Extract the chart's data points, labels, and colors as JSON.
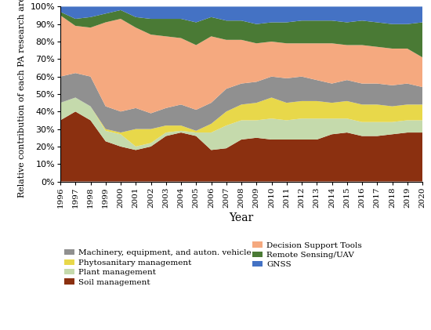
{
  "years": [
    1996,
    1997,
    1998,
    1999,
    2000,
    2001,
    2002,
    2003,
    2004,
    2005,
    2006,
    2007,
    2008,
    2009,
    2010,
    2011,
    2012,
    2013,
    2014,
    2015,
    2016,
    2017,
    2018,
    2019,
    2020
  ],
  "series": {
    "Soil management": [
      35,
      40,
      35,
      23,
      20,
      18,
      20,
      26,
      28,
      26,
      18,
      19,
      24,
      25,
      24,
      24,
      24,
      24,
      27,
      28,
      26,
      26,
      27,
      28,
      28
    ],
    "Plant management": [
      10,
      8,
      8,
      6,
      7,
      2,
      2,
      2,
      1,
      2,
      10,
      13,
      11,
      10,
      12,
      11,
      12,
      12,
      9,
      8,
      8,
      8,
      7,
      7,
      7
    ],
    "Phytosanitary management": [
      0,
      0,
      0,
      1,
      1,
      10,
      8,
      4,
      3,
      1,
      5,
      8,
      9,
      10,
      12,
      10,
      10,
      10,
      9,
      10,
      10,
      10,
      9,
      9,
      9
    ],
    "Machinery, equipment, and auton. vehicle": [
      15,
      14,
      17,
      13,
      12,
      12,
      9,
      10,
      12,
      12,
      12,
      13,
      12,
      12,
      12,
      14,
      14,
      12,
      11,
      12,
      12,
      12,
      12,
      12,
      10
    ],
    "Decision Support Tools": [
      35,
      27,
      28,
      48,
      53,
      46,
      45,
      41,
      38,
      37,
      38,
      28,
      25,
      22,
      20,
      20,
      19,
      21,
      23,
      20,
      22,
      21,
      21,
      20,
      17
    ],
    "Remote Sensing/UAV": [
      2,
      4,
      6,
      5,
      5,
      6,
      9,
      10,
      11,
      13,
      11,
      11,
      11,
      11,
      11,
      12,
      13,
      13,
      13,
      13,
      14,
      14,
      14,
      14,
      20
    ],
    "GNSS": [
      3,
      7,
      6,
      4,
      2,
      6,
      7,
      7,
      7,
      9,
      6,
      8,
      8,
      10,
      9,
      9,
      8,
      8,
      8,
      9,
      8,
      9,
      10,
      10,
      9
    ]
  },
  "colors": {
    "Soil management": "#8B3010",
    "Plant management": "#C5DAAC",
    "Phytosanitary management": "#E8D84A",
    "Machinery, equipment, and auton. vehicle": "#909090",
    "Decision Support Tools": "#F5A97F",
    "Remote Sensing/UAV": "#4A7A35",
    "GNSS": "#4472C4"
  },
  "stack_order": [
    "Soil management",
    "Plant management",
    "Phytosanitary management",
    "Machinery, equipment, and auton. vehicle",
    "Decision Support Tools",
    "Remote Sensing/UAV",
    "GNSS"
  ],
  "legend_order": [
    "Machinery, equipment, and auton. vehicle",
    "Phytosanitary management",
    "Plant management",
    "Soil management",
    "Decision Support Tools",
    "Remote Sensing/UAV",
    "GNSS"
  ],
  "ylabel": "Relative contribution of each PA research area",
  "xlabel": "Year",
  "ytick_labels": [
    "0%",
    "10%",
    "20%",
    "30%",
    "40%",
    "50%",
    "60%",
    "70%",
    "80%",
    "90%",
    "100%"
  ],
  "ytick_vals": [
    0,
    10,
    20,
    30,
    40,
    50,
    60,
    70,
    80,
    90,
    100
  ]
}
